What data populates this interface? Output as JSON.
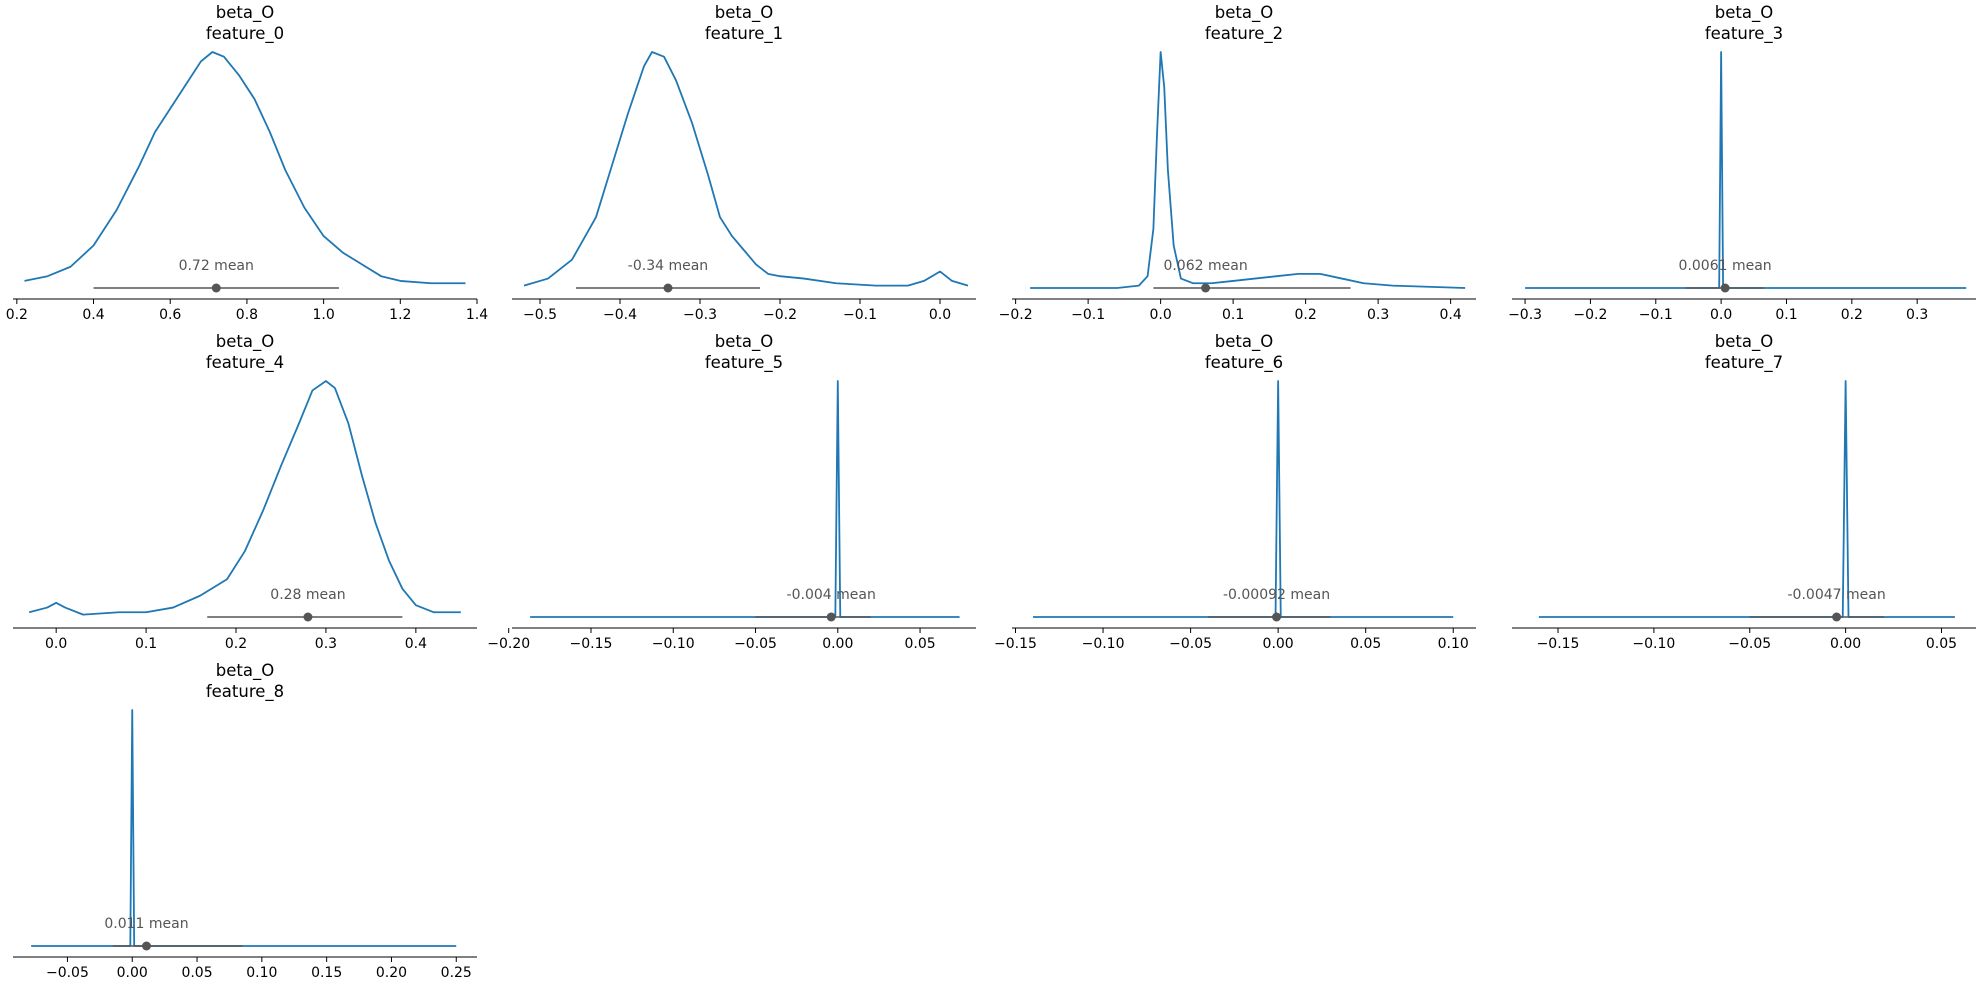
{
  "style": {
    "curve_color": "#1f77b4",
    "interval_color": "#555555"
  },
  "chart_data": [
    {
      "type": "line",
      "title": [
        "beta_O",
        "feature_0"
      ],
      "mean_label": "0.72 mean",
      "mean": 0.72,
      "hdi": [
        0.4,
        1.04
      ],
      "xlim": [
        0.19,
        1.4
      ],
      "ticks": [
        {
          "v": 0.2,
          "l": "0.2"
        },
        {
          "v": 0.4,
          "l": "0.4"
        },
        {
          "v": 0.6,
          "l": "0.6"
        },
        {
          "v": 0.8,
          "l": "0.8"
        },
        {
          "v": 1.0,
          "l": "1.0"
        },
        {
          "v": 1.2,
          "l": "1.2"
        },
        {
          "v": 1.4,
          "l": "1.4"
        }
      ],
      "density": [
        [
          0.22,
          0.03
        ],
        [
          0.28,
          0.05
        ],
        [
          0.34,
          0.09
        ],
        [
          0.4,
          0.18
        ],
        [
          0.46,
          0.33
        ],
        [
          0.52,
          0.52
        ],
        [
          0.56,
          0.66
        ],
        [
          0.6,
          0.76
        ],
        [
          0.64,
          0.86
        ],
        [
          0.68,
          0.96
        ],
        [
          0.71,
          1.0
        ],
        [
          0.74,
          0.98
        ],
        [
          0.78,
          0.9
        ],
        [
          0.82,
          0.8
        ],
        [
          0.86,
          0.66
        ],
        [
          0.9,
          0.5
        ],
        [
          0.95,
          0.34
        ],
        [
          1.0,
          0.22
        ],
        [
          1.05,
          0.15
        ],
        [
          1.1,
          0.1
        ],
        [
          1.15,
          0.05
        ],
        [
          1.2,
          0.03
        ],
        [
          1.28,
          0.02
        ],
        [
          1.37,
          0.02
        ]
      ]
    },
    {
      "type": "line",
      "title": [
        "beta_O",
        "feature_1"
      ],
      "mean_label": "-0.34 mean",
      "mean": -0.34,
      "hdi": [
        -0.455,
        -0.225
      ],
      "xlim": [
        -0.535,
        0.045
      ],
      "ticks": [
        {
          "v": -0.5,
          "l": "−0.5"
        },
        {
          "v": -0.4,
          "l": "−0.4"
        },
        {
          "v": -0.3,
          "l": "−0.3"
        },
        {
          "v": -0.2,
          "l": "−0.2"
        },
        {
          "v": -0.1,
          "l": "−0.1"
        },
        {
          "v": 0.0,
          "l": "0.0"
        }
      ],
      "density": [
        [
          -0.52,
          0.01
        ],
        [
          -0.49,
          0.04
        ],
        [
          -0.46,
          0.12
        ],
        [
          -0.43,
          0.3
        ],
        [
          -0.41,
          0.52
        ],
        [
          -0.39,
          0.74
        ],
        [
          -0.37,
          0.94
        ],
        [
          -0.36,
          1.0
        ],
        [
          -0.345,
          0.98
        ],
        [
          -0.33,
          0.88
        ],
        [
          -0.31,
          0.7
        ],
        [
          -0.29,
          0.48
        ],
        [
          -0.275,
          0.3
        ],
        [
          -0.26,
          0.22
        ],
        [
          -0.245,
          0.16
        ],
        [
          -0.23,
          0.1
        ],
        [
          -0.215,
          0.06
        ],
        [
          -0.2,
          0.05
        ],
        [
          -0.17,
          0.04
        ],
        [
          -0.13,
          0.02
        ],
        [
          -0.08,
          0.01
        ],
        [
          -0.04,
          0.01
        ],
        [
          -0.02,
          0.03
        ],
        [
          0.0,
          0.07
        ],
        [
          0.015,
          0.03
        ],
        [
          0.035,
          0.01
        ]
      ]
    },
    {
      "type": "line",
      "title": [
        "beta_O",
        "feature_2"
      ],
      "mean_label": "0.062 mean",
      "mean": 0.062,
      "hdi": [
        -0.01,
        0.262
      ],
      "xlim": [
        -0.205,
        0.435
      ],
      "ticks": [
        {
          "v": -0.2,
          "l": "−0.2"
        },
        {
          "v": -0.1,
          "l": "−0.1"
        },
        {
          "v": 0.0,
          "l": "0.0"
        },
        {
          "v": 0.1,
          "l": "0.1"
        },
        {
          "v": 0.2,
          "l": "0.2"
        },
        {
          "v": 0.3,
          "l": "0.3"
        },
        {
          "v": 0.4,
          "l": "0.4"
        }
      ],
      "density": [
        [
          -0.18,
          0.0
        ],
        [
          -0.06,
          0.0
        ],
        [
          -0.03,
          0.01
        ],
        [
          -0.018,
          0.05
        ],
        [
          -0.01,
          0.25
        ],
        [
          -0.005,
          0.65
        ],
        [
          0.0,
          1.0
        ],
        [
          0.005,
          0.85
        ],
        [
          0.01,
          0.5
        ],
        [
          0.018,
          0.18
        ],
        [
          0.028,
          0.04
        ],
        [
          0.045,
          0.02
        ],
        [
          0.07,
          0.02
        ],
        [
          0.1,
          0.03
        ],
        [
          0.13,
          0.04
        ],
        [
          0.16,
          0.05
        ],
        [
          0.19,
          0.06
        ],
        [
          0.22,
          0.06
        ],
        [
          0.25,
          0.04
        ],
        [
          0.28,
          0.02
        ],
        [
          0.32,
          0.01
        ],
        [
          0.42,
          0.0
        ]
      ]
    },
    {
      "type": "line",
      "title": [
        "beta_O",
        "feature_3"
      ],
      "mean_label": "0.0061 mean",
      "mean": 0.0061,
      "hdi": [
        -0.055,
        0.065
      ],
      "xlim": [
        -0.32,
        0.39
      ],
      "ticks": [
        {
          "v": -0.3,
          "l": "−0.3"
        },
        {
          "v": -0.2,
          "l": "−0.2"
        },
        {
          "v": -0.1,
          "l": "−0.1"
        },
        {
          "v": 0.0,
          "l": "0.0"
        },
        {
          "v": 0.1,
          "l": "0.1"
        },
        {
          "v": 0.2,
          "l": "0.2"
        },
        {
          "v": 0.3,
          "l": "0.3"
        }
      ],
      "density": [
        [
          -0.3,
          0.0
        ],
        [
          -0.003,
          0.0
        ],
        [
          -0.0015,
          0.5
        ],
        [
          0.0,
          1.0
        ],
        [
          0.0015,
          0.5
        ],
        [
          0.003,
          0.0
        ],
        [
          0.375,
          0.0
        ]
      ]
    },
    {
      "type": "line",
      "title": [
        "beta_O",
        "feature_4"
      ],
      "mean_label": "0.28 mean",
      "mean": 0.28,
      "hdi": [
        0.168,
        0.385
      ],
      "xlim": [
        -0.048,
        0.468
      ],
      "ticks": [
        {
          "v": 0.0,
          "l": "0.0"
        },
        {
          "v": 0.1,
          "l": "0.1"
        },
        {
          "v": 0.2,
          "l": "0.2"
        },
        {
          "v": 0.3,
          "l": "0.3"
        },
        {
          "v": 0.4,
          "l": "0.4"
        }
      ],
      "density": [
        [
          -0.03,
          0.02
        ],
        [
          -0.01,
          0.04
        ],
        [
          0.0,
          0.06
        ],
        [
          0.01,
          0.04
        ],
        [
          0.03,
          0.01
        ],
        [
          0.07,
          0.02
        ],
        [
          0.1,
          0.02
        ],
        [
          0.13,
          0.04
        ],
        [
          0.16,
          0.09
        ],
        [
          0.19,
          0.16
        ],
        [
          0.21,
          0.28
        ],
        [
          0.23,
          0.45
        ],
        [
          0.25,
          0.64
        ],
        [
          0.27,
          0.82
        ],
        [
          0.285,
          0.96
        ],
        [
          0.3,
          1.0
        ],
        [
          0.31,
          0.97
        ],
        [
          0.325,
          0.82
        ],
        [
          0.34,
          0.6
        ],
        [
          0.355,
          0.4
        ],
        [
          0.37,
          0.24
        ],
        [
          0.385,
          0.12
        ],
        [
          0.4,
          0.05
        ],
        [
          0.42,
          0.02
        ],
        [
          0.45,
          0.02
        ]
      ]
    },
    {
      "type": "line",
      "title": [
        "beta_O",
        "feature_5"
      ],
      "mean_label": "-0.004 mean",
      "mean": -0.004,
      "hdi": [
        -0.05,
        0.02
      ],
      "xlim": [
        -0.198,
        0.084
      ],
      "ticks": [
        {
          "v": -0.2,
          "l": "−0.20"
        },
        {
          "v": -0.15,
          "l": "−0.15"
        },
        {
          "v": -0.1,
          "l": "−0.10"
        },
        {
          "v": -0.05,
          "l": "−0.05"
        },
        {
          "v": 0.0,
          "l": "0.00"
        },
        {
          "v": 0.05,
          "l": "0.05"
        }
      ],
      "density": [
        [
          -0.187,
          0.0
        ],
        [
          -0.0015,
          0.0
        ],
        [
          -0.0006,
          0.6
        ],
        [
          0.0,
          1.0
        ],
        [
          0.0006,
          0.6
        ],
        [
          0.0015,
          0.0
        ],
        [
          0.074,
          0.0
        ]
      ]
    },
    {
      "type": "line",
      "title": [
        "beta_O",
        "feature_6"
      ],
      "mean_label": "-0.00092 mean",
      "mean": -0.00092,
      "hdi": [
        -0.04,
        0.03
      ],
      "xlim": [
        -0.152,
        0.113
      ],
      "ticks": [
        {
          "v": -0.15,
          "l": "−0.15"
        },
        {
          "v": -0.1,
          "l": "−0.10"
        },
        {
          "v": -0.05,
          "l": "−0.05"
        },
        {
          "v": 0.0,
          "l": "0.00"
        },
        {
          "v": 0.05,
          "l": "0.05"
        },
        {
          "v": 0.1,
          "l": "0.10"
        }
      ],
      "density": [
        [
          -0.14,
          0.0
        ],
        [
          -0.0015,
          0.0
        ],
        [
          -0.0006,
          0.6
        ],
        [
          0.0,
          1.0
        ],
        [
          0.0006,
          0.6
        ],
        [
          0.0015,
          0.0
        ],
        [
          0.1,
          0.0
        ]
      ]
    },
    {
      "type": "line",
      "title": [
        "beta_O",
        "feature_7"
      ],
      "mean_label": "-0.0047 mean",
      "mean": -0.0047,
      "hdi": [
        -0.05,
        0.02
      ],
      "xlim": [
        -0.174,
        0.068
      ],
      "ticks": [
        {
          "v": -0.15,
          "l": "−0.15"
        },
        {
          "v": -0.1,
          "l": "−0.10"
        },
        {
          "v": -0.05,
          "l": "−0.05"
        },
        {
          "v": 0.0,
          "l": "0.00"
        },
        {
          "v": 0.05,
          "l": "0.05"
        }
      ],
      "density": [
        [
          -0.16,
          0.0
        ],
        [
          -0.0015,
          0.0
        ],
        [
          -0.0006,
          0.6
        ],
        [
          0.0,
          1.0
        ],
        [
          0.0006,
          0.6
        ],
        [
          0.0015,
          0.0
        ],
        [
          0.057,
          0.0
        ]
      ]
    },
    {
      "type": "line",
      "title": [
        "beta_O",
        "feature_8"
      ],
      "mean_label": "0.011 mean",
      "mean": 0.011,
      "hdi": [
        -0.015,
        0.085
      ],
      "xlim": [
        -0.092,
        0.266
      ],
      "ticks": [
        {
          "v": -0.05,
          "l": "−0.05"
        },
        {
          "v": 0.0,
          "l": "0.00"
        },
        {
          "v": 0.05,
          "l": "0.05"
        },
        {
          "v": 0.1,
          "l": "0.10"
        },
        {
          "v": 0.15,
          "l": "0.15"
        },
        {
          "v": 0.2,
          "l": "0.20"
        },
        {
          "v": 0.25,
          "l": "0.25"
        }
      ],
      "density": [
        [
          -0.078,
          0.0
        ],
        [
          -0.0015,
          0.0
        ],
        [
          -0.0006,
          0.6
        ],
        [
          0.0,
          1.0
        ],
        [
          0.0006,
          0.6
        ],
        [
          0.0015,
          0.0
        ],
        [
          0.25,
          0.0
        ]
      ]
    }
  ]
}
